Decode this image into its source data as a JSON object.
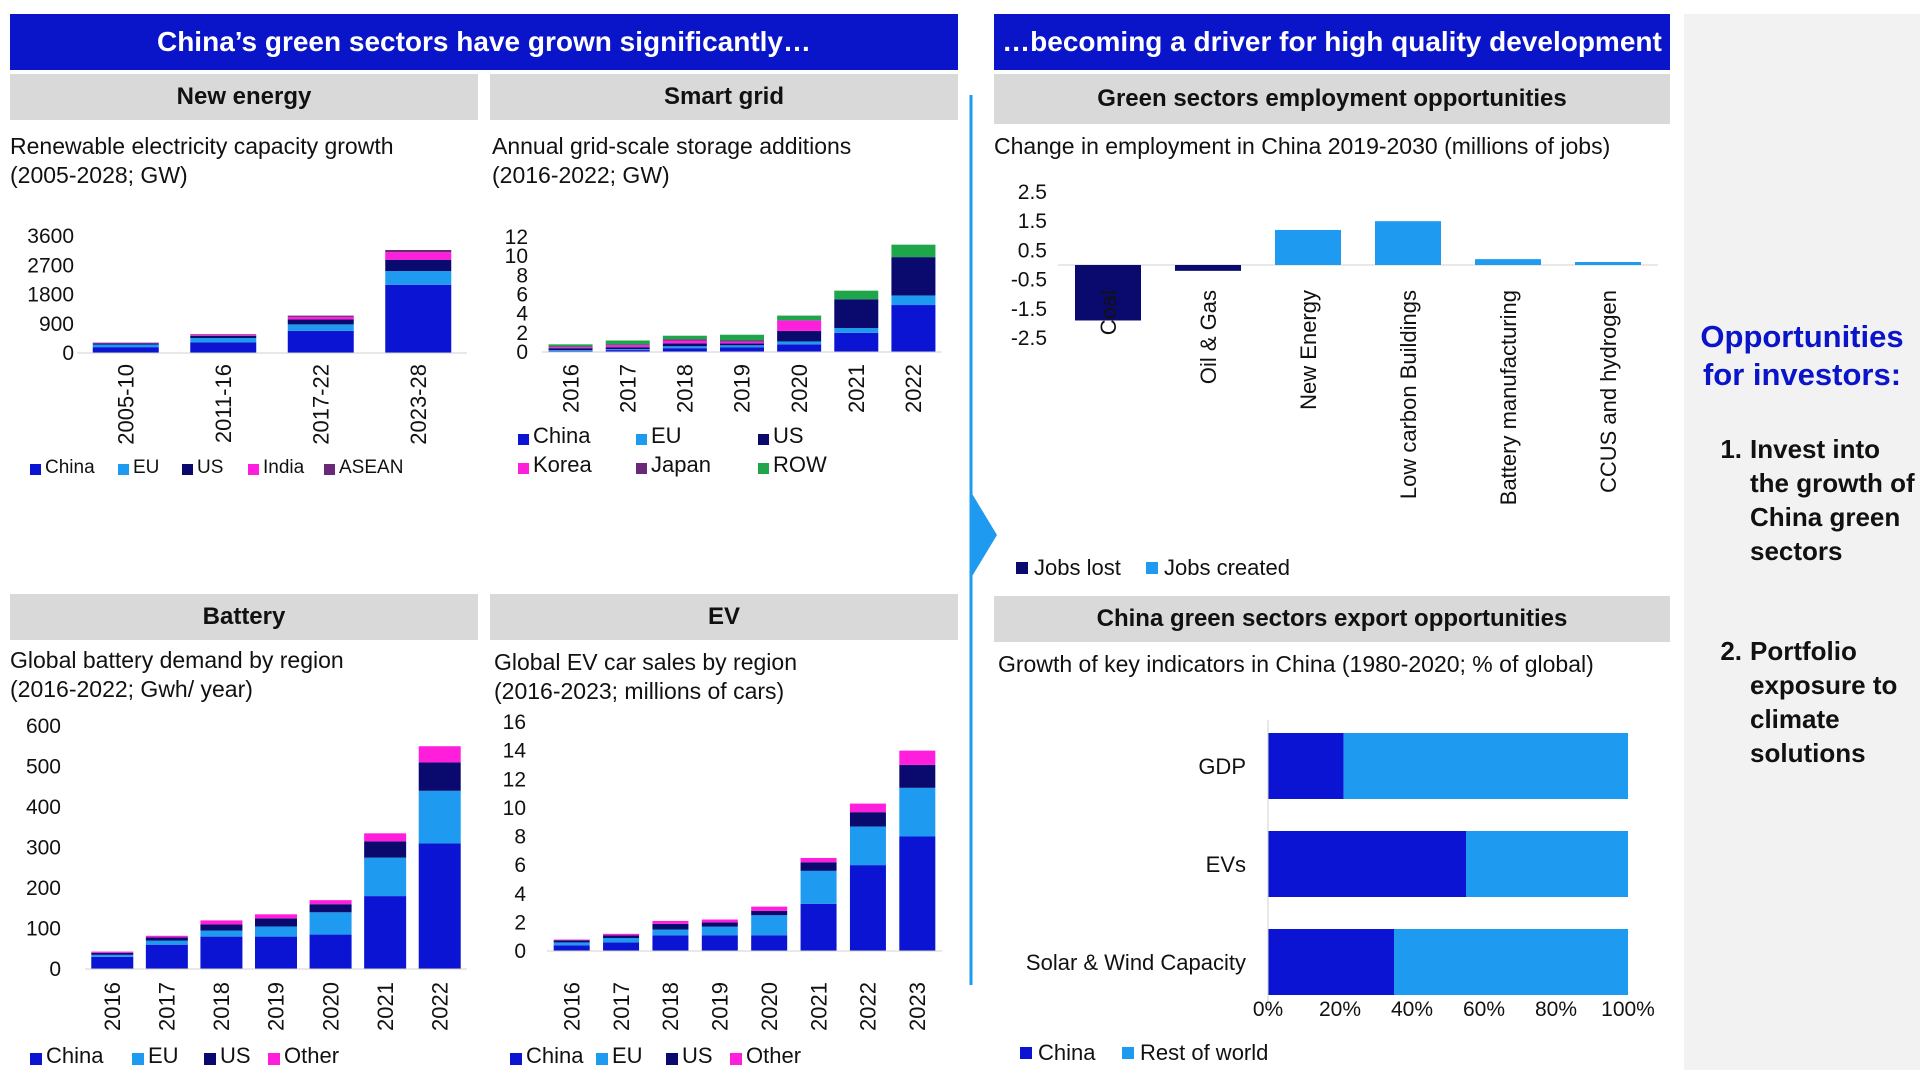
{
  "left_header": "China’s green sectors have grown significantly…",
  "right_header": "…becoming a driver for high quality development",
  "opportunities": {
    "title": "Opportunities for investors:",
    "items": [
      {
        "num": "1.",
        "text": "Invest into the growth of China green sectors"
      },
      {
        "num": "2.",
        "text": "Portfolio exposure to climate solutions"
      }
    ]
  },
  "colors": {
    "China": "#0a14d2",
    "EU": "#1e9bf0",
    "US": "#0a0a6e",
    "India": "#ff1edc",
    "ASEAN": "#6a2878",
    "Korea": "#ff1edc",
    "Japan": "#6a2878",
    "ROW": "#1fa54a",
    "Other": "#ff1edc",
    "JobsLost": "#0a0a6e",
    "JobsCreated": "#1e9bf0",
    "RestOfWorld": "#1e9bf0",
    "header": "#0a14c8"
  },
  "chart_data": [
    {
      "id": "new_energy",
      "section": "New energy",
      "type": "bar",
      "stacked": true,
      "title": "Renewable electricity capacity growth\n(2005-2028;  GW)",
      "categories": [
        "2005-10",
        "2011-16",
        "2017-22",
        "2023-28"
      ],
      "series": [
        {
          "name": "China",
          "values": [
            180,
            330,
            680,
            2100
          ]
        },
        {
          "name": "EU",
          "values": [
            80,
            130,
            200,
            420
          ]
        },
        {
          "name": "US",
          "values": [
            40,
            70,
            150,
            350
          ]
        },
        {
          "name": "India",
          "values": [
            10,
            30,
            80,
            230
          ]
        },
        {
          "name": "ASEAN",
          "values": [
            10,
            20,
            40,
            70
          ]
        }
      ],
      "yticks": [
        0,
        900,
        1800,
        2700,
        3600
      ],
      "ylim": [
        0,
        3600
      ]
    },
    {
      "id": "smart_grid",
      "section": "Smart grid",
      "type": "bar",
      "stacked": true,
      "title": "Annual grid-scale storage additions\n(2016-2022;  GW)",
      "categories": [
        "2016",
        "2017",
        "2018",
        "2019",
        "2020",
        "2021",
        "2022"
      ],
      "series": [
        {
          "name": "China",
          "values": [
            0.1,
            0.2,
            0.4,
            0.5,
            0.8,
            2.0,
            4.9
          ]
        },
        {
          "name": "EU",
          "values": [
            0.1,
            0.1,
            0.2,
            0.2,
            0.3,
            0.5,
            1.0
          ]
        },
        {
          "name": "US",
          "values": [
            0.2,
            0.2,
            0.3,
            0.2,
            1.1,
            3.0,
            4.0
          ]
        },
        {
          "name": "Korea",
          "values": [
            0.1,
            0.2,
            0.3,
            0.2,
            1.1,
            0.0,
            0.0
          ]
        },
        {
          "name": "Japan",
          "values": [
            0.1,
            0.1,
            0.1,
            0.1,
            0.0,
            0.0,
            0.0
          ]
        },
        {
          "name": "ROW",
          "values": [
            0.2,
            0.4,
            0.4,
            0.6,
            0.5,
            0.9,
            1.3
          ]
        }
      ],
      "yticks": [
        0,
        2,
        4,
        6,
        8,
        10,
        12
      ],
      "ylim": [
        0,
        12
      ]
    },
    {
      "id": "employment",
      "section": "Green sectors employment opportunities",
      "type": "bar",
      "title": "Change in employment in China 2019-2030  (millions of jobs)",
      "categories": [
        "Coal",
        "Oil & Gas",
        "New Energy",
        "Low carbon Buildings",
        "Battery manufacturing",
        "CCUS and hydrogen"
      ],
      "series": [
        {
          "name": "Jobs lost",
          "values": [
            -1.9,
            -0.2,
            0,
            0,
            0,
            0
          ]
        },
        {
          "name": "Jobs created",
          "values": [
            0,
            0,
            1.2,
            1.5,
            0.2,
            0.1
          ]
        }
      ],
      "yticks": [
        2.5,
        1.5,
        0.5,
        -0.5,
        -1.5,
        -2.5
      ],
      "ylim": [
        -2.5,
        2.5
      ]
    },
    {
      "id": "battery",
      "section": "Battery",
      "type": "bar",
      "stacked": true,
      "title": "Global battery demand by region\n(2016-2022;  Gwh/ year)",
      "categories": [
        "2016",
        "2017",
        "2018",
        "2019",
        "2020",
        "2021",
        "2022"
      ],
      "series": [
        {
          "name": "China",
          "values": [
            30,
            60,
            80,
            80,
            85,
            180,
            310
          ]
        },
        {
          "name": "EU",
          "values": [
            5,
            10,
            15,
            25,
            55,
            95,
            130
          ]
        },
        {
          "name": "US",
          "values": [
            5,
            8,
            15,
            20,
            20,
            40,
            70
          ]
        },
        {
          "name": "Other",
          "values": [
            3,
            4,
            10,
            10,
            10,
            20,
            40
          ]
        }
      ],
      "yticks": [
        0,
        100,
        200,
        300,
        400,
        500,
        600
      ],
      "ylim": [
        0,
        600
      ]
    },
    {
      "id": "ev",
      "section": "EV",
      "type": "bar",
      "stacked": true,
      "title": "Global EV car sales by region\n(2016-2023;  millions of cars)",
      "categories": [
        "2016",
        "2017",
        "2018",
        "2019",
        "2020",
        "2021",
        "2022",
        "2023"
      ],
      "series": [
        {
          "name": "China",
          "values": [
            0.4,
            0.6,
            1.1,
            1.1,
            1.1,
            3.3,
            6.0,
            8.0
          ]
        },
        {
          "name": "EU",
          "values": [
            0.2,
            0.3,
            0.4,
            0.6,
            1.4,
            2.3,
            2.7,
            3.4
          ]
        },
        {
          "name": "US",
          "values": [
            0.15,
            0.2,
            0.4,
            0.3,
            0.3,
            0.6,
            1.0,
            1.6
          ]
        },
        {
          "name": "Other",
          "values": [
            0.05,
            0.1,
            0.2,
            0.2,
            0.3,
            0.3,
            0.6,
            1.0
          ]
        }
      ],
      "yticks": [
        0,
        2,
        4,
        6,
        8,
        10,
        12,
        14,
        16
      ],
      "ylim": [
        0,
        16
      ]
    },
    {
      "id": "exports",
      "section": "China green sectors export opportunities",
      "type": "bar",
      "orientation": "horizontal",
      "stacked": true,
      "title": "Growth of key indicators in China (1980-2020;  % of global)",
      "categories": [
        "GDP",
        "EVs",
        "Solar & Wind Capacity"
      ],
      "series": [
        {
          "name": "China",
          "values": [
            21,
            55,
            35
          ]
        },
        {
          "name": "Rest of world",
          "values": [
            79,
            45,
            65
          ]
        }
      ],
      "xticks": [
        "0%",
        "20%",
        "40%",
        "60%",
        "80%",
        "100%"
      ],
      "xlim": [
        0,
        100
      ]
    }
  ]
}
